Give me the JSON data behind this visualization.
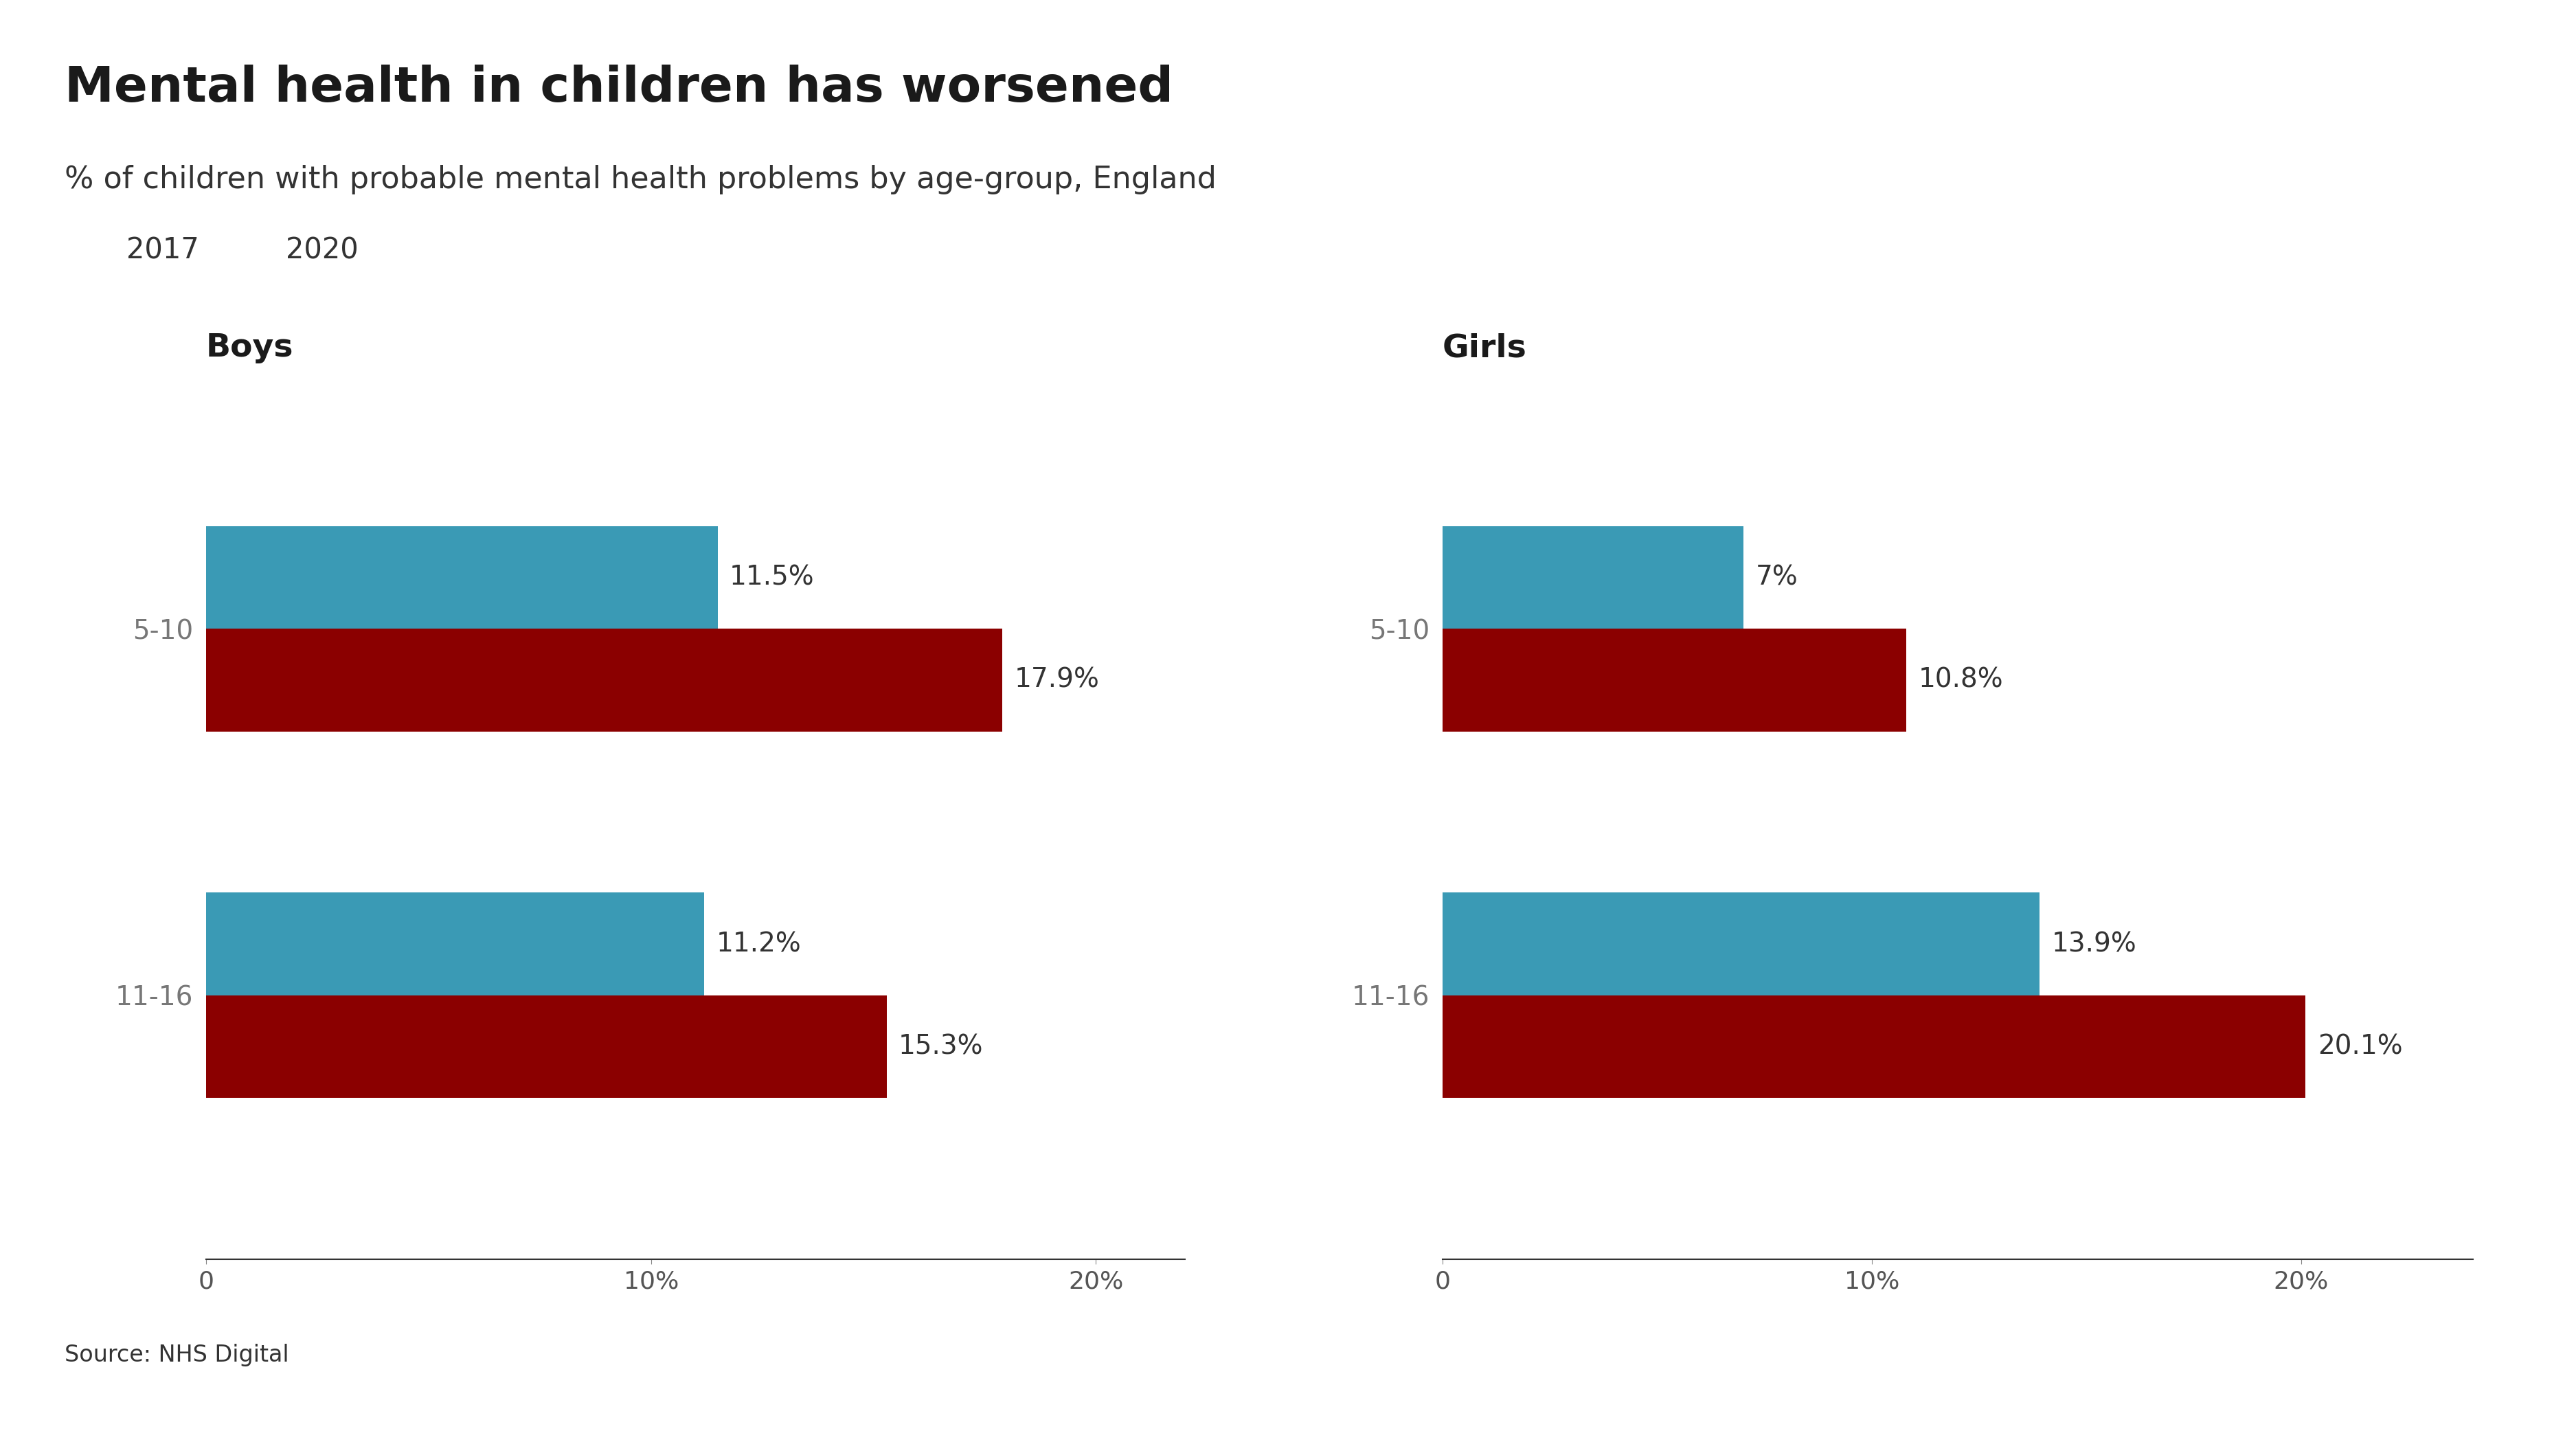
{
  "title": "Mental health in children has worsened",
  "subtitle_detail": "% of children with probable mental health problems by age-group, England",
  "source": "Source: NHS Digital",
  "legend_labels": [
    "2017",
    "2020"
  ],
  "color_2017": "#3a9ab5",
  "color_2020": "#8b0000",
  "background_color": "#ffffff",
  "boys": {
    "title": "Boys",
    "categories": [
      "5-10",
      "11-16"
    ],
    "values_2017": [
      11.5,
      11.2
    ],
    "values_2020": [
      17.9,
      15.3
    ],
    "labels_2017": [
      "11.5%",
      "11.2%"
    ],
    "labels_2020": [
      "17.9%",
      "15.3%"
    ],
    "xlim": [
      0,
      22
    ]
  },
  "girls": {
    "title": "Girls",
    "categories": [
      "5-10",
      "11-16"
    ],
    "values_2017": [
      7.0,
      13.9
    ],
    "values_2020": [
      10.8,
      20.1
    ],
    "labels_2017": [
      "7%",
      "13.9%"
    ],
    "labels_2020": [
      "10.8%",
      "20.1%"
    ],
    "xlim": [
      0,
      24
    ]
  },
  "title_fontsize": 52,
  "subtitle_fontsize": 32,
  "legend_fontsize": 30,
  "label_fontsize": 28,
  "tick_fontsize": 26,
  "category_fontsize": 28,
  "subplot_title_fontsize": 34,
  "source_fontsize": 24,
  "bar_height": 0.28,
  "title_color": "#1a1a1a",
  "text_color": "#333333",
  "tick_color": "#555555",
  "category_color": "#777777"
}
